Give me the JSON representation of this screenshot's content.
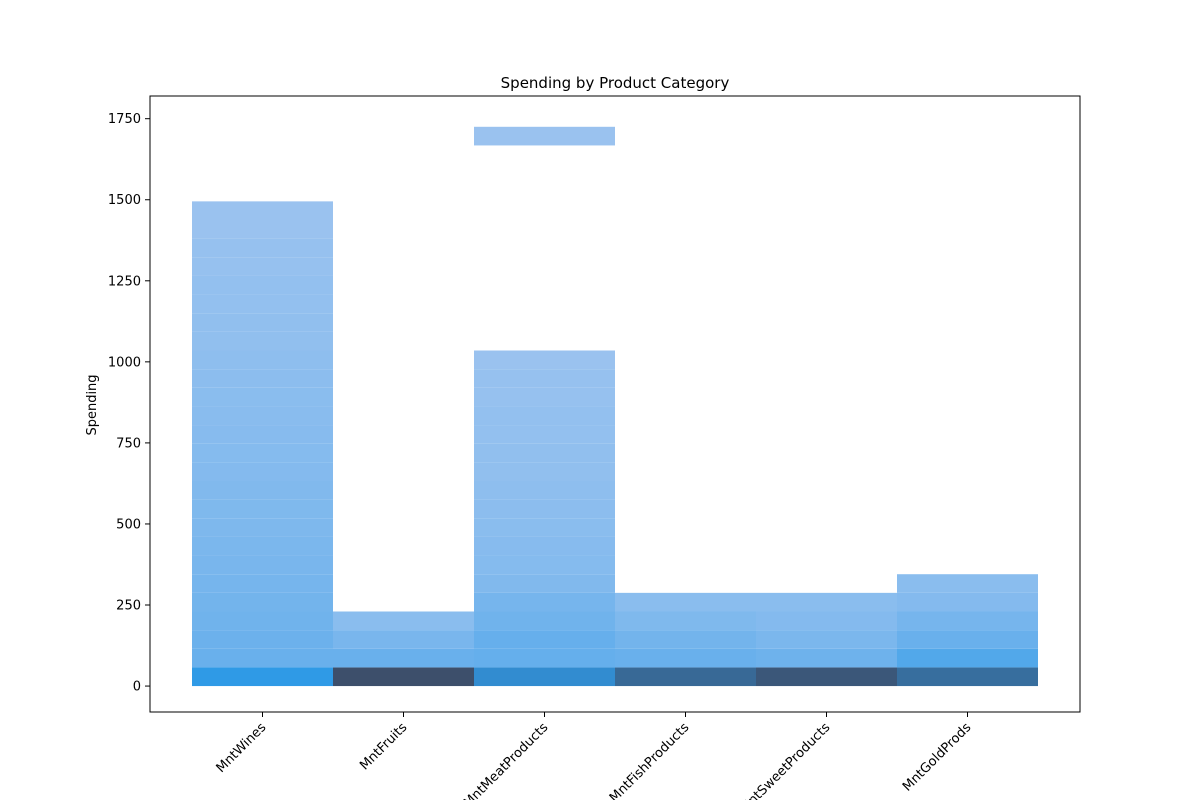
{
  "chart_data": {
    "type": "heatmap",
    "title": "Spending by Product Category",
    "xlabel": "",
    "ylabel": "Spending",
    "categories": [
      "MntWines",
      "MntFruits",
      "MntMeatProducts",
      "MntFishProducts",
      "MntSweetProducts",
      "MntGoldProds"
    ],
    "y_ticks": [
      0,
      250,
      500,
      750,
      1000,
      1250,
      1500,
      1750
    ],
    "ylim": [
      -80,
      1820
    ],
    "bin_width": 57.5,
    "bins": [
      {
        "category": "MntWines",
        "low": 0,
        "high": 57.5,
        "count": 130
      },
      {
        "category": "MntWines",
        "low": 57.5,
        "high": 115,
        "count": 35
      },
      {
        "category": "MntWines",
        "low": 115,
        "high": 172.5,
        "count": 32
      },
      {
        "category": "MntWines",
        "low": 172.5,
        "high": 230,
        "count": 28
      },
      {
        "category": "MntWines",
        "low": 230,
        "high": 287.5,
        "count": 25
      },
      {
        "category": "MntWines",
        "low": 287.5,
        "high": 345,
        "count": 22
      },
      {
        "category": "MntWines",
        "low": 345,
        "high": 402.5,
        "count": 20
      },
      {
        "category": "MntWines",
        "low": 402.5,
        "high": 460,
        "count": 18
      },
      {
        "category": "MntWines",
        "low": 460,
        "high": 517.5,
        "count": 16
      },
      {
        "category": "MntWines",
        "low": 517.5,
        "high": 575,
        "count": 15
      },
      {
        "category": "MntWines",
        "low": 575,
        "high": 632.5,
        "count": 14
      },
      {
        "category": "MntWines",
        "low": 632.5,
        "high": 690,
        "count": 12
      },
      {
        "category": "MntWines",
        "low": 690,
        "high": 747.5,
        "count": 11
      },
      {
        "category": "MntWines",
        "low": 747.5,
        "high": 805,
        "count": 10
      },
      {
        "category": "MntWines",
        "low": 805,
        "high": 862.5,
        "count": 9
      },
      {
        "category": "MntWines",
        "low": 862.5,
        "high": 920,
        "count": 8
      },
      {
        "category": "MntWines",
        "low": 920,
        "high": 977.5,
        "count": 7
      },
      {
        "category": "MntWines",
        "low": 977.5,
        "high": 1035,
        "count": 6
      },
      {
        "category": "MntWines",
        "low": 1035,
        "high": 1092.5,
        "count": 5
      },
      {
        "category": "MntWines",
        "low": 1092.5,
        "high": 1150,
        "count": 5
      },
      {
        "category": "MntWines",
        "low": 1150,
        "high": 1207.5,
        "count": 4
      },
      {
        "category": "MntWines",
        "low": 1207.5,
        "high": 1265,
        "count": 4
      },
      {
        "category": "MntWines",
        "low": 1265,
        "high": 1322.5,
        "count": 3
      },
      {
        "category": "MntWines",
        "low": 1322.5,
        "high": 1380,
        "count": 3
      },
      {
        "category": "MntWines",
        "low": 1380,
        "high": 1437.5,
        "count": 2
      },
      {
        "category": "MntWines",
        "low": 1437.5,
        "high": 1495,
        "count": 2
      },
      {
        "category": "MntFruits",
        "low": 0,
        "high": 57.5,
        "count": 420
      },
      {
        "category": "MntFruits",
        "low": 57.5,
        "high": 115,
        "count": 35
      },
      {
        "category": "MntFruits",
        "low": 115,
        "high": 172.5,
        "count": 20
      },
      {
        "category": "MntFruits",
        "low": 172.5,
        "high": 230,
        "count": 8
      },
      {
        "category": "MntMeatProducts",
        "low": 0,
        "high": 57.5,
        "count": 170
      },
      {
        "category": "MntMeatProducts",
        "low": 57.5,
        "high": 115,
        "count": 40
      },
      {
        "category": "MntMeatProducts",
        "low": 115,
        "high": 172.5,
        "count": 38
      },
      {
        "category": "MntMeatProducts",
        "low": 172.5,
        "high": 230,
        "count": 28
      },
      {
        "category": "MntMeatProducts",
        "low": 230,
        "high": 287.5,
        "count": 22
      },
      {
        "category": "MntMeatProducts",
        "low": 287.5,
        "high": 345,
        "count": 14
      },
      {
        "category": "MntMeatProducts",
        "low": 345,
        "high": 402.5,
        "count": 11
      },
      {
        "category": "MntMeatProducts",
        "low": 402.5,
        "high": 460,
        "count": 10
      },
      {
        "category": "MntMeatProducts",
        "low": 460,
        "high": 517.5,
        "count": 8
      },
      {
        "category": "MntMeatProducts",
        "low": 517.5,
        "high": 575,
        "count": 7
      },
      {
        "category": "MntMeatProducts",
        "low": 575,
        "high": 632.5,
        "count": 6
      },
      {
        "category": "MntMeatProducts",
        "low": 632.5,
        "high": 690,
        "count": 5
      },
      {
        "category": "MntMeatProducts",
        "low": 690,
        "high": 747.5,
        "count": 5
      },
      {
        "category": "MntMeatProducts",
        "low": 747.5,
        "high": 805,
        "count": 4
      },
      {
        "category": "MntMeatProducts",
        "low": 805,
        "high": 862.5,
        "count": 4
      },
      {
        "category": "MntMeatProducts",
        "low": 862.5,
        "high": 920,
        "count": 3
      },
      {
        "category": "MntMeatProducts",
        "low": 920,
        "high": 977.5,
        "count": 3
      },
      {
        "category": "MntMeatProducts",
        "low": 977.5,
        "high": 1035,
        "count": 2
      },
      {
        "category": "MntMeatProducts",
        "low": 1667.5,
        "high": 1725,
        "count": 2
      },
      {
        "category": "MntFishProducts",
        "low": 0,
        "high": 57.5,
        "count": 300
      },
      {
        "category": "MntFishProducts",
        "low": 57.5,
        "high": 115,
        "count": 35
      },
      {
        "category": "MntFishProducts",
        "low": 115,
        "high": 172.5,
        "count": 25
      },
      {
        "category": "MntFishProducts",
        "low": 172.5,
        "high": 230,
        "count": 15
      },
      {
        "category": "MntFishProducts",
        "low": 230,
        "high": 287.5,
        "count": 8
      },
      {
        "category": "MntSweetProducts",
        "low": 0,
        "high": 57.5,
        "count": 380
      },
      {
        "category": "MntSweetProducts",
        "low": 57.5,
        "high": 115,
        "count": 30
      },
      {
        "category": "MntSweetProducts",
        "low": 115,
        "high": 172.5,
        "count": 18
      },
      {
        "category": "MntSweetProducts",
        "low": 172.5,
        "high": 230,
        "count": 12
      },
      {
        "category": "MntSweetProducts",
        "low": 230,
        "high": 287.5,
        "count": 8
      },
      {
        "category": "MntGoldProds",
        "low": 0,
        "high": 57.5,
        "count": 280
      },
      {
        "category": "MntGoldProds",
        "low": 57.5,
        "high": 115,
        "count": 65
      },
      {
        "category": "MntGoldProds",
        "low": 115,
        "high": 172.5,
        "count": 35
      },
      {
        "category": "MntGoldProds",
        "low": 172.5,
        "high": 230,
        "count": 22
      },
      {
        "category": "MntGoldProds",
        "low": 230,
        "high": 287.5,
        "count": 12
      },
      {
        "category": "MntGoldProds",
        "low": 287.5,
        "high": 345,
        "count": 8
      }
    ],
    "colors": {
      "low": "#a9c8f0",
      "mid": "#2f9be8",
      "high": "#3d4f6b"
    },
    "grid": false
  }
}
